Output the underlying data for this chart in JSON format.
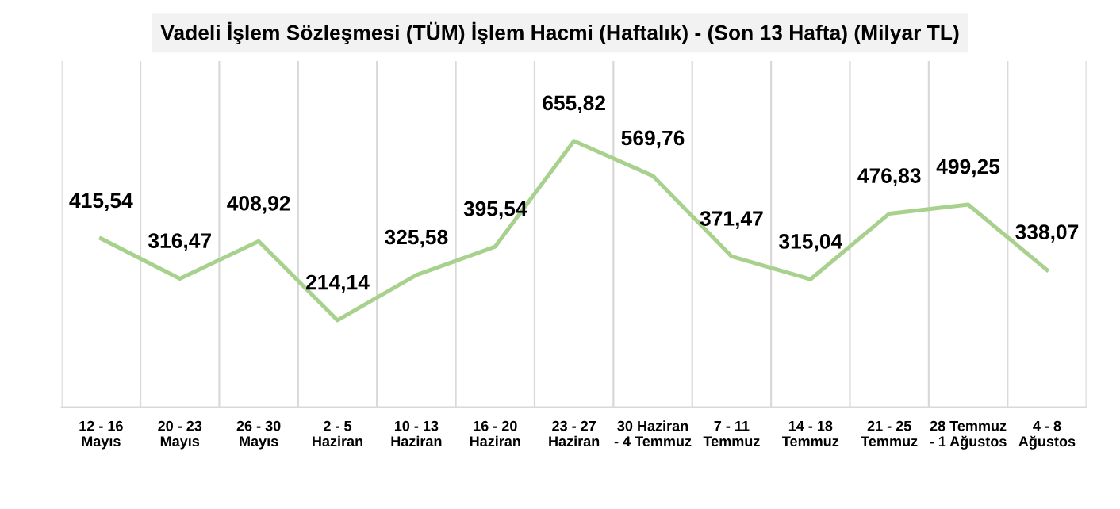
{
  "chart_data": {
    "type": "line",
    "title": "Vadeli İşlem Sözleşmesi (TÜM) İşlem Hacmi (Haftalık) - (Son 13 Hafta) (Milyar TL)",
    "categories": [
      "12 - 16\nMayıs",
      "20 - 23\nMayıs",
      "26 - 30\nMayıs",
      "2 - 5\nHaziran",
      "10 - 13\nHaziran",
      "16 - 20\nHaziran",
      "23 - 27\nHaziran",
      "30 Haziran\n- 4 Temmuz",
      "7 - 11\nTemmuz",
      "14 - 18\nTemmuz",
      "21 - 25\nTemmuz",
      "28 Temmuz\n- 1 Ağustos",
      "4 - 8\nAğustos"
    ],
    "series": [
      {
        "color": "#a9d18e",
        "values": [
          415.54,
          316.47,
          408.92,
          214.14,
          325.58,
          395.54,
          655.82,
          569.76,
          371.47,
          315.04,
          476.83,
          499.25,
          338.07
        ],
        "value_labels": [
          "415,54",
          "316,47",
          "408,92",
          "214,14",
          "325,58",
          "395,54",
          "655,82",
          "569,76",
          "371,47",
          "315,04",
          "476,83",
          "499,25",
          "338,07"
        ]
      }
    ],
    "grid": "x",
    "marker": "none",
    "line_style": "solid",
    "legend": false
  }
}
